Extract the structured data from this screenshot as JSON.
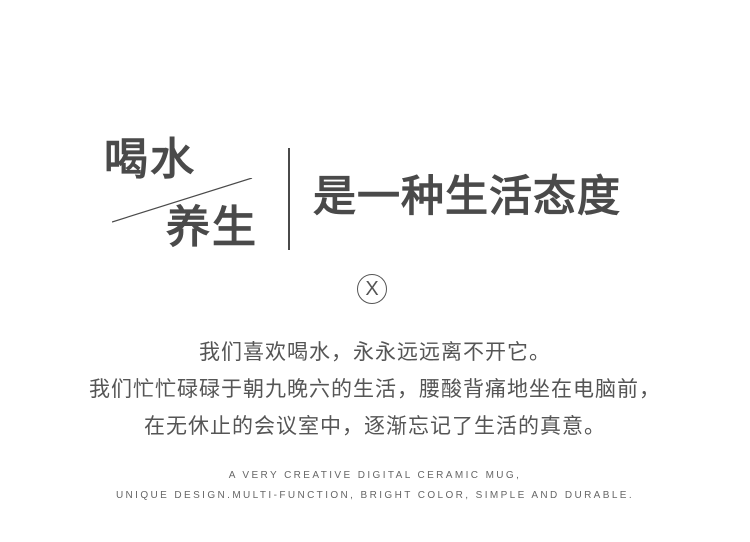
{
  "headline": {
    "word_a": "喝水",
    "word_b": "养生",
    "slogan": "是一种生活态度"
  },
  "badge": {
    "letter": "X"
  },
  "body_lines": [
    "我们喜欢喝水，永永远远离不开它。",
    "我们忙忙碌碌于朝九晚六的生活，腰酸背痛地坐在电脑前，",
    "在无休止的会议室中，逐渐忘记了生活的真意。"
  ],
  "english_lines": [
    "A VERY CREATIVE DIGITAL CERAMIC MUG,",
    "UNIQUE DESIGN.MULTI-FUNCTION, BRIGHT COLOR, SIMPLE AND DURABLE."
  ],
  "colors": {
    "text": "#4a4a4a",
    "background": "#ffffff"
  }
}
